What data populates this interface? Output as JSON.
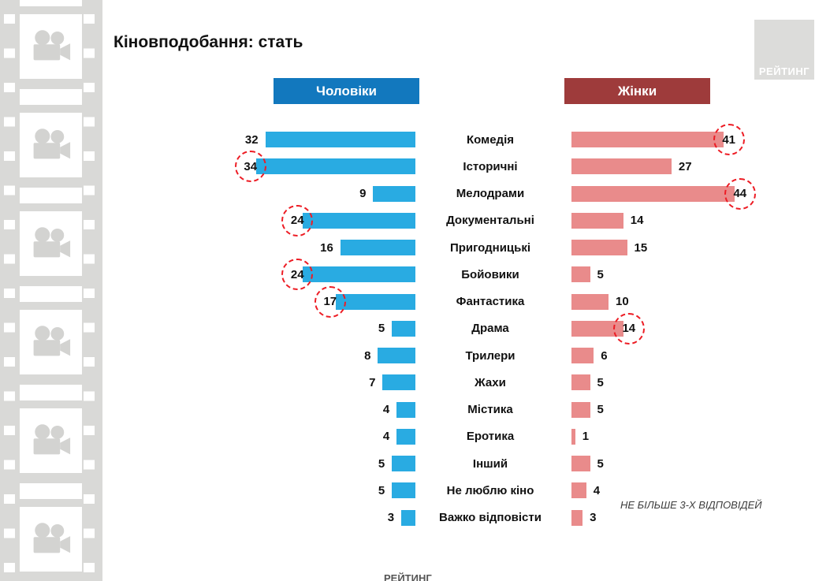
{
  "page": {
    "title": "Кіновподобання: стать"
  },
  "logo": {
    "label": "РЕЙТИНГ"
  },
  "note": "НЕ БІЛЬШЕ 3-Х ВІДПОВІДЕЙ",
  "footer": {
    "source_label": "РЕЙТИНГ"
  },
  "colors": {
    "men_header": "#1278be",
    "men_bar": "#29abe2",
    "women_header": "#9e3b3b",
    "women_bar": "#e98b8b",
    "highlight_circle": "#ed1c24",
    "filmstrip": "#d9d9d7",
    "logo_bg": "#dcdcda"
  },
  "chart_data": {
    "type": "bar",
    "orientation": "butterfly-horizontal",
    "title": "Кіновподобання: стать",
    "categories": [
      "Комедія",
      "Історичні",
      "Мелодрами",
      "Документальні",
      "Пригодницькі",
      "Бойовики",
      "Фантастика",
      "Драма",
      "Трилери",
      "Жахи",
      "Містика",
      "Еротика",
      "Інший",
      "Не люблю кіно",
      "Важко відповісти"
    ],
    "series": [
      {
        "name": "Чоловіки",
        "color": "#29abe2",
        "header_color": "#1278be",
        "values": [
          32,
          34,
          9,
          24,
          16,
          24,
          17,
          5,
          8,
          7,
          4,
          4,
          5,
          5,
          3
        ],
        "circled_indices": [
          1,
          3,
          5,
          6
        ]
      },
      {
        "name": "Жінки",
        "color": "#e98b8b",
        "header_color": "#9e3b3b",
        "values": [
          41,
          27,
          44,
          14,
          15,
          5,
          10,
          14,
          6,
          5,
          5,
          1,
          5,
          4,
          3
        ],
        "circled_indices": [
          0,
          2,
          7
        ]
      }
    ],
    "value_labels": true,
    "legend_position": "top",
    "annotation": "НЕ БІЛЬШЕ 3-Х ВІДПОВІДЕЙ"
  }
}
